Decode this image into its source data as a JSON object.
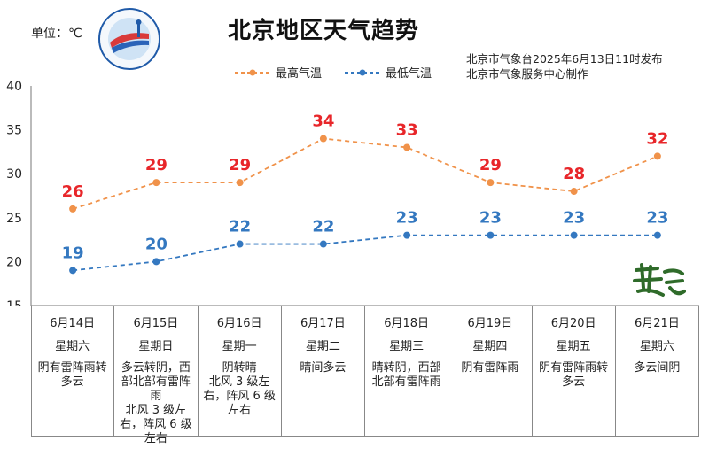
{
  "header": {
    "unit": "单位：℃",
    "title": "北京地区天气趋势",
    "source_line1": "北京市气象台2025年6月13日11时发布",
    "source_line2": "北京市气象服务中心制作"
  },
  "colors": {
    "high": "#F0924A",
    "low": "#3478C0",
    "high_label": "#E8262A",
    "low_label": "#3478C0"
  },
  "chart_data": {
    "type": "line",
    "categories": [
      "6月14日",
      "6月15日",
      "6月16日",
      "6月17日",
      "6月18日",
      "6月19日",
      "6月20日",
      "6月21日"
    ],
    "series": [
      {
        "name": "最高气温",
        "values": [
          26,
          29,
          29,
          34,
          33,
          29,
          28,
          32
        ]
      },
      {
        "name": "最低气温",
        "values": [
          19,
          20,
          22,
          22,
          23,
          23,
          23,
          23
        ]
      }
    ],
    "ylim": [
      15,
      40
    ],
    "yticks": [
      "40",
      "35",
      "30",
      "25",
      "20",
      "15"
    ],
    "grid": false,
    "legend": "top"
  },
  "days": [
    {
      "date": "6月14日",
      "week": "星期六",
      "weather": "阴有雷阵雨转多云",
      "wind": ""
    },
    {
      "date": "6月15日",
      "week": "星期日",
      "weather": "多云转阴，西部北部有雷阵雨",
      "wind": "北风 3 级左右，阵风 6 级左右"
    },
    {
      "date": "6月16日",
      "week": "星期一",
      "weather": "阴转晴",
      "wind": "北风 3 级左右，阵风 6 级左右"
    },
    {
      "date": "6月17日",
      "week": "星期二",
      "weather": "晴间多云",
      "wind": ""
    },
    {
      "date": "6月18日",
      "week": "星期三",
      "weather": "晴转阴，西部北部有雷阵雨",
      "wind": ""
    },
    {
      "date": "6月19日",
      "week": "星期四",
      "weather": "阴有雷阵雨",
      "wind": ""
    },
    {
      "date": "6月20日",
      "week": "星期五",
      "weather": "阴有雷阵雨转多云",
      "wind": ""
    },
    {
      "date": "6月21日",
      "week": "星期六",
      "weather": "多云间阴",
      "wind": ""
    }
  ]
}
